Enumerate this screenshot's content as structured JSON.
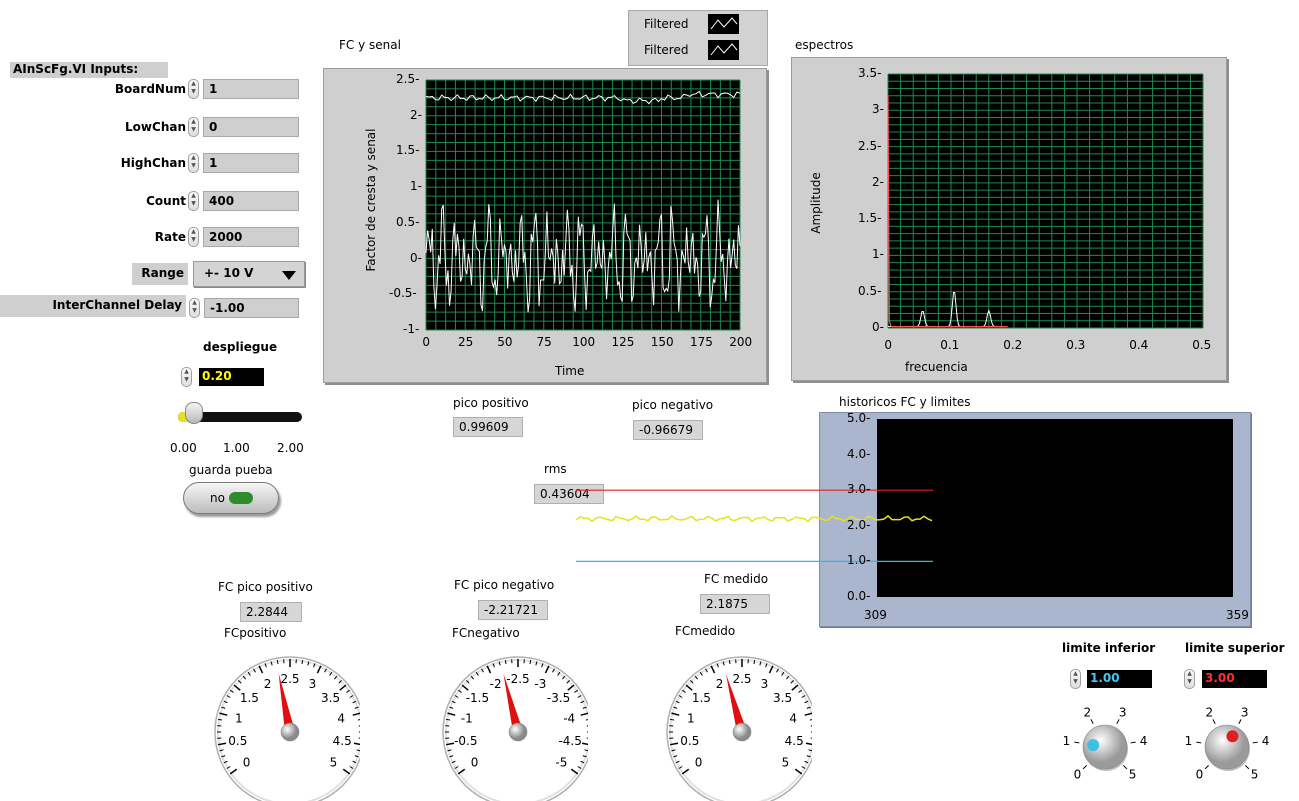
{
  "inputs": {
    "title": "AInScFg.VI Inputs:",
    "board_num": {
      "label": "BoardNum",
      "value": "1"
    },
    "low_chan": {
      "label": "LowChan",
      "value": "0"
    },
    "high_chan": {
      "label": "HighChan",
      "value": "1"
    },
    "count": {
      "label": "Count",
      "value": "400"
    },
    "rate": {
      "label": "Rate",
      "value": "2000"
    },
    "range": {
      "label": "Range",
      "value": "+- 10 V"
    },
    "interchannel_delay": {
      "label": "InterChannel Delay",
      "value": "-1.00"
    }
  },
  "despliegue": {
    "label": "despliegue",
    "value": "0.20",
    "slider_fraction": 0.1,
    "ticks": [
      "0.00",
      "1.00",
      "2.00"
    ],
    "value_color": "#ffff00"
  },
  "guarda": {
    "label": "guarda pueba",
    "button_text": "no",
    "led_color": "#2e8b2e"
  },
  "legend": {
    "items": [
      "Filtered",
      "Filtered"
    ]
  },
  "graph_fc": {
    "title": "FC y senal",
    "xlabel": "Time",
    "ylabel": "Factor de cresta y senal",
    "xticks": [
      "0",
      "25",
      "50",
      "75",
      "100",
      "125",
      "150",
      "175",
      "200"
    ],
    "yticks": [
      "2.5-",
      "2-",
      "1.5-",
      "1-",
      "0.5-",
      "0-",
      "-0.5-",
      "-1-"
    ]
  },
  "graph_spec": {
    "title": "espectros",
    "xlabel": "frecuencia",
    "ylabel": "Amplitude",
    "xticks": [
      "0",
      "0.1",
      "0.2",
      "0.3",
      "0.4",
      "0.5"
    ],
    "yticks": [
      "3.5-",
      "3-",
      "2.5-",
      "2-",
      "1.5-",
      "1-",
      "0.5-",
      "0-"
    ]
  },
  "indicators": {
    "pico_positivo": {
      "label": "pico positivo",
      "value": "0.99609"
    },
    "pico_negativo": {
      "label": "pico negativo",
      "value": "-0.96679"
    },
    "rms": {
      "label": "rms",
      "value": "0.43604"
    }
  },
  "history": {
    "title": "historicos FC y limites",
    "yticks": [
      "5.0-",
      "4.0-",
      "3.0-",
      "2.0-",
      "1.0-",
      "0.0-"
    ],
    "xticks": [
      "309",
      "359"
    ],
    "upper_color": "#e02020",
    "lower_color": "#30b8e0",
    "trace_color": "#e8e020"
  },
  "fc_values": {
    "positivo": {
      "label": "FC pico positivo",
      "value": "2.2844"
    },
    "negativo": {
      "label": "FC pico negativo",
      "value": "-2.21721"
    },
    "medido": {
      "label": "FC medido",
      "value": "2.1875"
    }
  },
  "gauges": [
    {
      "label": "FCpositivo",
      "ticks": [
        "0",
        "0.5",
        "1",
        "1.5",
        "2",
        "2.5",
        "3",
        "3.5",
        "4",
        "4.5",
        "5"
      ],
      "value": 2.28
    },
    {
      "label": "FCnegativo",
      "ticks": [
        "0",
        "-0.5",
        "-1",
        "-1.5",
        "-2",
        "-2.5",
        "-3",
        "-3.5",
        "-4",
        "-4.5",
        "-5"
      ],
      "value": 2.22
    },
    {
      "label": "FCmedido",
      "ticks": [
        "0",
        "0.5",
        "1",
        "1.5",
        "2",
        "2.5",
        "3",
        "3.5",
        "4",
        "4.5",
        "5"
      ],
      "value": 2.19
    }
  ],
  "limite_inferior": {
    "label": "limite inferior",
    "value": "1.00",
    "value_color": "#40c8f0",
    "ticks": [
      "0",
      "1",
      "2",
      "3",
      "4",
      "5"
    ],
    "knob_color": "#40c0e0"
  },
  "limite_superior": {
    "label": "limite superior",
    "value": "3.00",
    "value_color": "#ff3030",
    "ticks": [
      "0",
      "1",
      "2",
      "3",
      "4",
      "5"
    ],
    "knob_color": "#e02020"
  }
}
